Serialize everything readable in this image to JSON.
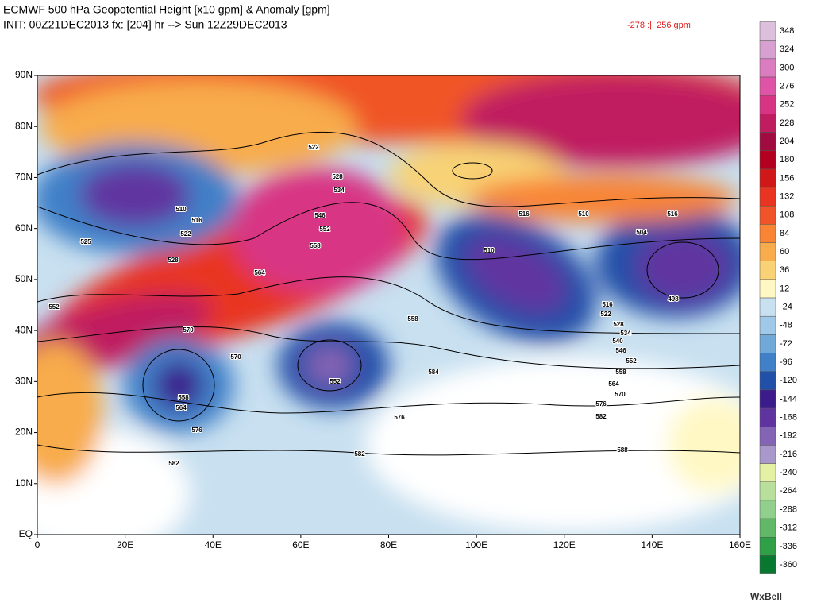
{
  "header": {
    "title": "ECMWF 500 hPa Geopotential Height [x10 gpm] & Anomaly [gpm]",
    "subtitle": "INIT: 00Z21DEC2013 fx: [204] hr --> Sun 12Z29DEC2013",
    "range_note": "-278 :|:   256 gpm"
  },
  "latitude_labels": [
    "90N",
    "80N",
    "70N",
    "60N",
    "50N",
    "40N",
    "30N",
    "20N",
    "10N",
    "EQ"
  ],
  "longitude_labels": [
    "0",
    "20E",
    "40E",
    "60E",
    "80E",
    "100E",
    "120E",
    "140E",
    "160E"
  ],
  "colorbar": [
    {
      "label": "348",
      "color": "#dcc0dc"
    },
    {
      "label": "324",
      "color": "#d8a0d0"
    },
    {
      "label": "300",
      "color": "#dc7cc0"
    },
    {
      "label": "276",
      "color": "#e054a8"
    },
    {
      "label": "252",
      "color": "#d83484"
    },
    {
      "label": "228",
      "color": "#c01c60"
    },
    {
      "label": "204",
      "color": "#a00c40"
    },
    {
      "label": "180",
      "color": "#b40020"
    },
    {
      "label": "156",
      "color": "#d01818"
    },
    {
      "label": "132",
      "color": "#e83420"
    },
    {
      "label": "108",
      "color": "#f05428"
    },
    {
      "label": "84",
      "color": "#f88434"
    },
    {
      "label": "60",
      "color": "#f8ac4c"
    },
    {
      "label": "36",
      "color": "#f8d274"
    },
    {
      "label": "12",
      "color": "#fff8c4"
    },
    {
      "label": "-24",
      "color": "#c8e0f0"
    },
    {
      "label": "-48",
      "color": "#a0c8e8"
    },
    {
      "label": "-72",
      "color": "#70a8d8"
    },
    {
      "label": "-96",
      "color": "#4080c8"
    },
    {
      "label": "-120",
      "color": "#2050a8"
    },
    {
      "label": "-144",
      "color": "#3c1c8c"
    },
    {
      "label": "-168",
      "color": "#6034a0"
    },
    {
      "label": "-192",
      "color": "#8464b4"
    },
    {
      "label": "-216",
      "color": "#a898cc"
    },
    {
      "label": "-240",
      "color": "#e4f0a4"
    },
    {
      "label": "-264",
      "color": "#b8e09c"
    },
    {
      "label": "-288",
      "color": "#90d08c"
    },
    {
      "label": "-312",
      "color": "#60b868"
    },
    {
      "label": "-336",
      "color": "#30a048"
    },
    {
      "label": "-360",
      "color": "#087830"
    }
  ],
  "contour_labels": [
    "522",
    "528",
    "534",
    "546",
    "552",
    "558",
    "564",
    "570",
    "510",
    "516",
    "522",
    "528",
    "525",
    "552",
    "570",
    "558",
    "564",
    "576",
    "582",
    "558",
    "552",
    "584",
    "576",
    "582",
    "516",
    "510",
    "516",
    "504",
    "510",
    "498",
    "516",
    "522",
    "528",
    "534",
    "540",
    "546",
    "552",
    "558",
    "564",
    "570",
    "576",
    "582",
    "588"
  ],
  "logo": "WxBell"
}
